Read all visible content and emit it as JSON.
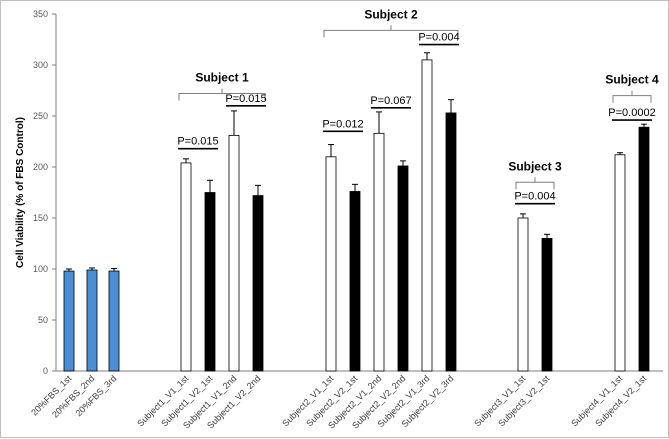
{
  "chart_data": {
    "type": "bar",
    "ylabel": "Cell Viability (% of FBS Control)",
    "xlabel": "",
    "ylim": [
      0,
      350
    ],
    "yticks": [
      0,
      50,
      100,
      150,
      200,
      250,
      300,
      350
    ],
    "grid": false,
    "colors": {
      "control": "#4a8fd4",
      "v1": "#ffffff",
      "v2": "#000000",
      "axis": "#7f7f7f"
    },
    "bars": [
      {
        "label": "20%FBS_1st",
        "value": 98,
        "error": 2,
        "kind": "control"
      },
      {
        "label": "20%FBS_2nd",
        "value": 99,
        "error": 2,
        "kind": "control"
      },
      {
        "label": "20%FBS_3rd",
        "value": 98,
        "error": 2.5,
        "kind": "control"
      },
      {
        "label": "Subject1_V1_1st",
        "value": 204,
        "error": 4,
        "kind": "v1"
      },
      {
        "label": "Subject1_V2_1st",
        "value": 175,
        "error": 12,
        "kind": "v2"
      },
      {
        "label": "Subject1_V1_2nd",
        "value": 231,
        "error": 24,
        "kind": "v1"
      },
      {
        "label": "Subject1_V2_2nd",
        "value": 172,
        "error": 10,
        "kind": "v2"
      },
      {
        "label": "Subject2_V1_1st",
        "value": 210,
        "error": 12,
        "kind": "v1"
      },
      {
        "label": "Subject2_V2_1st",
        "value": 176,
        "error": 7,
        "kind": "v2"
      },
      {
        "label": "Subject2_V1_2nd",
        "value": 233,
        "error": 21,
        "kind": "v1"
      },
      {
        "label": "Subject2_V2_2nd",
        "value": 201,
        "error": 5,
        "kind": "v2"
      },
      {
        "label": "Subject2_V1_3rd",
        "value": 305,
        "error": 7,
        "kind": "v1"
      },
      {
        "label": "Subject2_V2_3rd",
        "value": 253,
        "error": 13,
        "kind": "v2"
      },
      {
        "label": "Subject3_V1_1st",
        "value": 150,
        "error": 4,
        "kind": "v1"
      },
      {
        "label": "Subject3_V2_1st",
        "value": 130,
        "error": 4,
        "kind": "v2"
      },
      {
        "label": "Subject4_V1_1st",
        "value": 212,
        "error": 2,
        "kind": "v1"
      },
      {
        "label": "Subject4_V2_1st",
        "value": 239,
        "error": 3,
        "kind": "v2"
      }
    ],
    "groups": [
      {
        "label": "Subject 1",
        "first": 3,
        "last": 6,
        "level": 272
      },
      {
        "label": "Subject 2",
        "first": 7,
        "last": 12,
        "level": 334
      },
      {
        "label": "Subject 3",
        "first": 13,
        "last": 14,
        "level": 185
      },
      {
        "label": "Subject 4",
        "first": 15,
        "last": 16,
        "level": 270
      }
    ],
    "comparisons": [
      {
        "text": "P=0.015",
        "from": 3,
        "to": 4,
        "level": 218
      },
      {
        "text": "P=0.015",
        "from": 5,
        "to": 6,
        "level": 260
      },
      {
        "text": "P=0.012",
        "from": 7,
        "to": 8,
        "level": 235
      },
      {
        "text": "P=0.067",
        "from": 9,
        "to": 10,
        "level": 258
      },
      {
        "text": "P=0.004",
        "from": 11,
        "to": 12,
        "level": 320
      },
      {
        "text": "P=0.004",
        "from": 13,
        "to": 14,
        "level": 164
      },
      {
        "text": "P=0.0002",
        "from": 15,
        "to": 16,
        "level": 246
      }
    ]
  }
}
